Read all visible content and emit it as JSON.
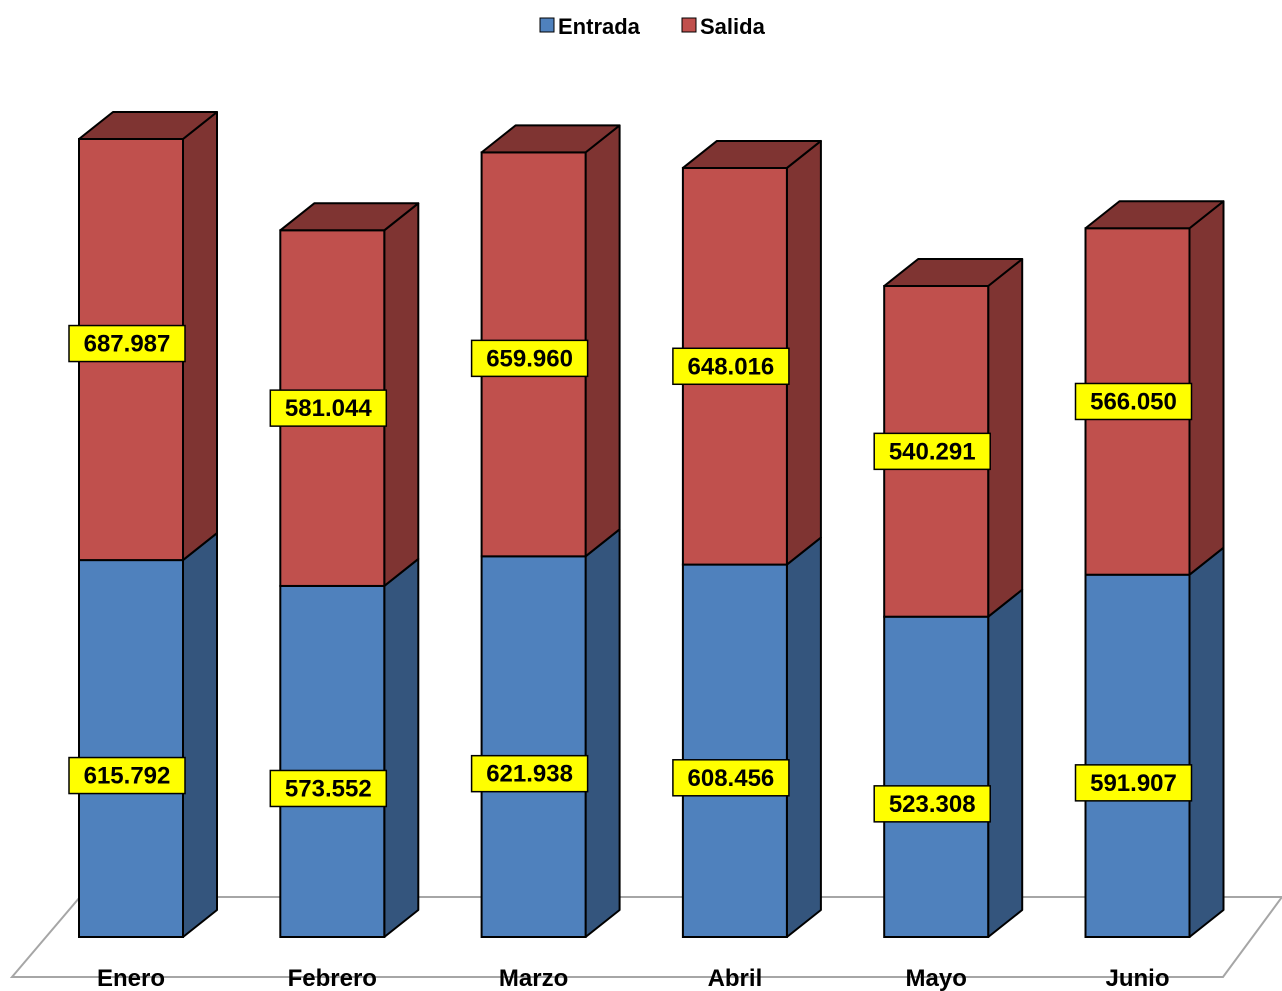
{
  "chart_data": {
    "type": "bar",
    "stacked": true,
    "style": "3d",
    "categories": [
      "Enero",
      "Febrero",
      "Marzo",
      "Abril",
      "Mayo",
      "Junio"
    ],
    "series": [
      {
        "name": "Entrada",
        "color": "#4F81BD",
        "side_color": "#34557D",
        "values": [
          615792,
          573552,
          621938,
          608456,
          523308,
          591907
        ],
        "labels": [
          "615.792",
          "573.552",
          "621.938",
          "608.456",
          "523.308",
          "591.907"
        ]
      },
      {
        "name": "Salida",
        "color": "#C0504D",
        "side_color": "#7F3432",
        "values": [
          687987,
          581044,
          659960,
          648016,
          540291,
          566050
        ],
        "labels": [
          "687.987",
          "581.044",
          "659.960",
          "648.016",
          "540.291",
          "566.050"
        ]
      }
    ],
    "ylim": [
      0,
      1303779
    ],
    "grid": false,
    "legend": "top-center",
    "data_label_style": {
      "background": "#FFFF00",
      "border": "#000000"
    }
  }
}
